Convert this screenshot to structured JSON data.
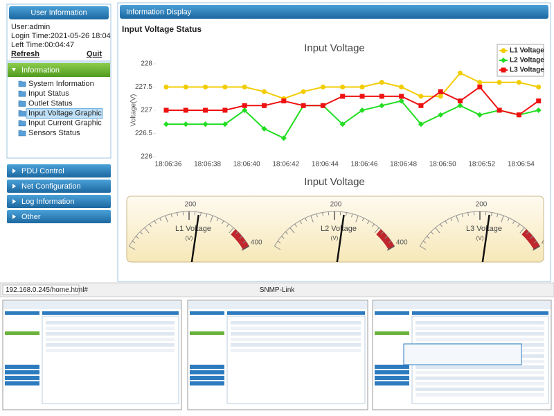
{
  "sidebar": {
    "user_panel": {
      "title": "User Information",
      "user": "User:admin",
      "login_time": "Login Time:2021-05-26 18:04",
      "left_time": "Left Time:00:04:47",
      "refresh": "Refresh",
      "quit": "Quit"
    },
    "information": {
      "title": "Information",
      "items": [
        "System Information",
        "Input Status",
        "Outlet Status",
        "Input Voltage Graphic",
        "Input Current Graphic",
        "Sensors Status"
      ],
      "selected": 3
    },
    "menus": [
      "PDU Control",
      "Net Configuration",
      "Log Information",
      "Other"
    ]
  },
  "main": {
    "title": "Information Display",
    "section_title": "Input Voltage Status"
  },
  "chart_data": {
    "type": "line",
    "title": "Input Voltage",
    "y_label": "Voltage(V)",
    "categories": [
      "18:06:36",
      null,
      "18:06:38",
      null,
      "18:06:40",
      null,
      "18:06:42",
      null,
      "18:06:44",
      null,
      "18:06:46",
      null,
      "18:06:48",
      null,
      "18:06:50",
      null,
      "18:06:52",
      null,
      "18:06:54",
      null
    ],
    "series": [
      {
        "name": "L1 Voltage",
        "color": "#f2cc00",
        "marker": "circle",
        "values": [
          227.5,
          227.5,
          227.5,
          227.5,
          227.5,
          227.4,
          227.25,
          227.4,
          227.5,
          227.5,
          227.5,
          227.6,
          227.5,
          227.3,
          227.3,
          227.8,
          227.6,
          227.6,
          227.6,
          227.5
        ]
      },
      {
        "name": "L2 Voltage",
        "color": "#22dd22",
        "marker": "diamond",
        "values": [
          226.7,
          226.7,
          226.7,
          226.7,
          227,
          226.6,
          226.4,
          227.1,
          227.1,
          226.7,
          227,
          227.1,
          227.2,
          226.7,
          226.9,
          227.1,
          226.9,
          227,
          226.9,
          227
        ]
      },
      {
        "name": "L3 Voltage",
        "color": "#ee1111",
        "marker": "square",
        "values": [
          227,
          227,
          227,
          227,
          227.1,
          227.1,
          227.2,
          227.1,
          227.1,
          227.3,
          227.3,
          227.3,
          227.3,
          227.1,
          227.4,
          227.2,
          227.5,
          227,
          226.9,
          227.2
        ]
      }
    ],
    "ylim": [
      226,
      228
    ],
    "yticks": [
      226,
      226.5,
      227,
      227.5,
      228
    ],
    "grid": false,
    "legend": "top-right"
  },
  "gauges": {
    "title": "Input Voltage",
    "lim": [
      0,
      400
    ],
    "ticks": [
      200,
      400
    ],
    "unit": "(V)",
    "items": [
      {
        "name": "L1 Voltage",
        "value": 227.5
      },
      {
        "name": "L2 Voltage",
        "value": 227
      },
      {
        "name": "L3 Voltage",
        "value": 227.2
      }
    ]
  },
  "status_bar": {
    "url": "192.168.0.245/home.html#",
    "footer": "SNMP-Link"
  }
}
